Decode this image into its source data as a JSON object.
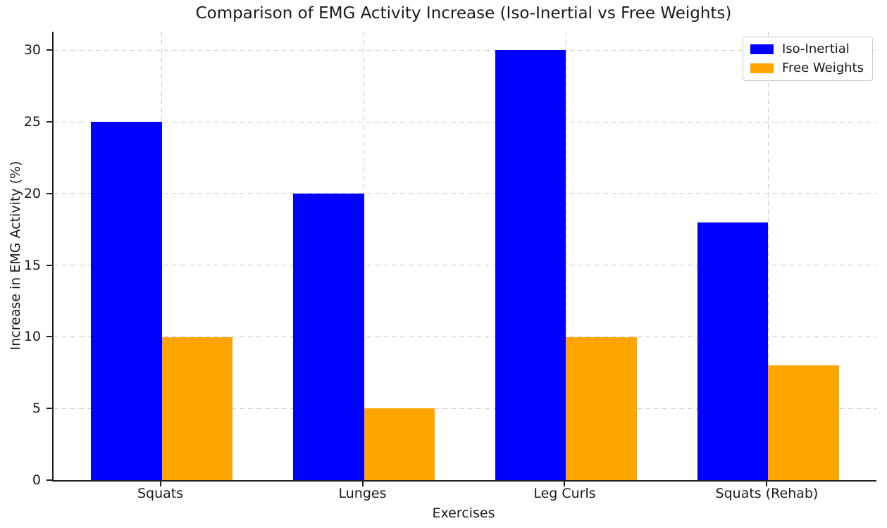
{
  "chart_data": {
    "type": "bar",
    "title": "Comparison of EMG Activity Increase (Iso-Inertial vs Free Weights)",
    "xlabel": "Exercises",
    "ylabel": "Increase in EMG Activity (%)",
    "categories": [
      "Squats",
      "Lunges",
      "Leg Curls",
      "Squats (Rehab)"
    ],
    "series": [
      {
        "name": "Iso-Inertial",
        "color": "#0000FF",
        "values": [
          25,
          20,
          30,
          18
        ]
      },
      {
        "name": "Free Weights",
        "color": "#FFA500",
        "values": [
          10,
          5,
          10,
          8
        ]
      }
    ],
    "ylim": [
      0,
      31.3
    ],
    "yticks": [
      0,
      5,
      10,
      15,
      20,
      25,
      30
    ],
    "bar_width": 0.35,
    "xlim": [
      -0.535,
      3.535
    ],
    "grid": true,
    "grid_color": "#cccccc",
    "grid_style": "dashed",
    "legend_position": "upper right",
    "axis_color": "#1f1f1f",
    "background_color": "#ffffff"
  }
}
